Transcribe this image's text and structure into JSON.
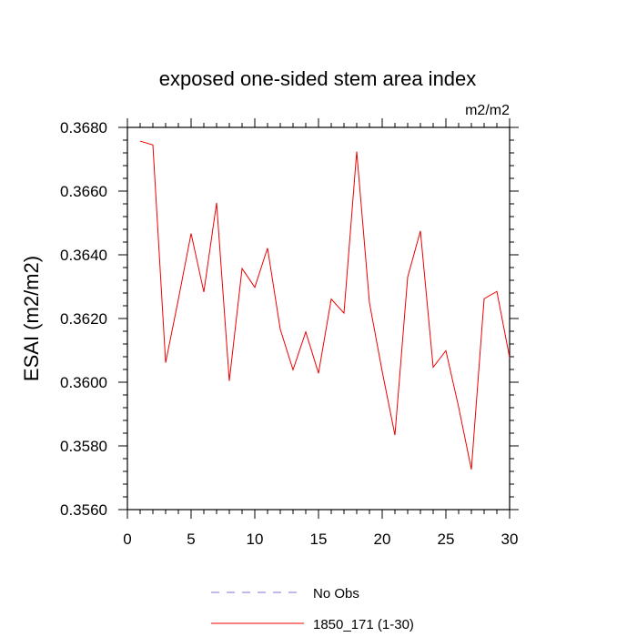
{
  "chart_data": {
    "type": "line",
    "title": "exposed one-sided stem area index",
    "units": "m2/m2",
    "xlabel": "",
    "ylabel": "ESAI  (m2/m2)",
    "xlim": [
      0,
      30
    ],
    "ylim": [
      0.356,
      0.368
    ],
    "x_ticks": [
      0,
      5,
      10,
      15,
      20,
      25,
      30
    ],
    "x_tick_labels": [
      "0",
      "5",
      "10",
      "15",
      "20",
      "25",
      "30"
    ],
    "y_ticks": [
      0.356,
      0.358,
      0.36,
      0.362,
      0.364,
      0.366,
      0.368
    ],
    "y_tick_labels": [
      "0.3560",
      "0.3580",
      "0.3600",
      "0.3620",
      "0.3640",
      "0.3660",
      "0.3680"
    ],
    "legend_position": "bottom-center",
    "series": [
      {
        "name": "No Obs",
        "color": "#7777dd",
        "style": "dashed",
        "x": [],
        "values": []
      },
      {
        "name": "1850_171 (1-30)",
        "color": "#ee0000",
        "style": "solid",
        "x": [
          1,
          2,
          3,
          4,
          5,
          6,
          7,
          8,
          9,
          10,
          11,
          12,
          13,
          14,
          15,
          16,
          17,
          18,
          19,
          20,
          21,
          22,
          23,
          24,
          25,
          26,
          27,
          28,
          29,
          30
        ],
        "values": [
          0.36757,
          0.36745,
          0.36061,
          0.3626,
          0.36467,
          0.36283,
          0.36563,
          0.36004,
          0.36357,
          0.36298,
          0.36421,
          0.36166,
          0.36039,
          0.36158,
          0.36028,
          0.36261,
          0.36217,
          0.36724,
          0.36249,
          0.36034,
          0.35834,
          0.3633,
          0.36475,
          0.36047,
          0.36099,
          0.35922,
          0.35726,
          0.36262,
          0.36285,
          0.36077
        ]
      }
    ]
  }
}
